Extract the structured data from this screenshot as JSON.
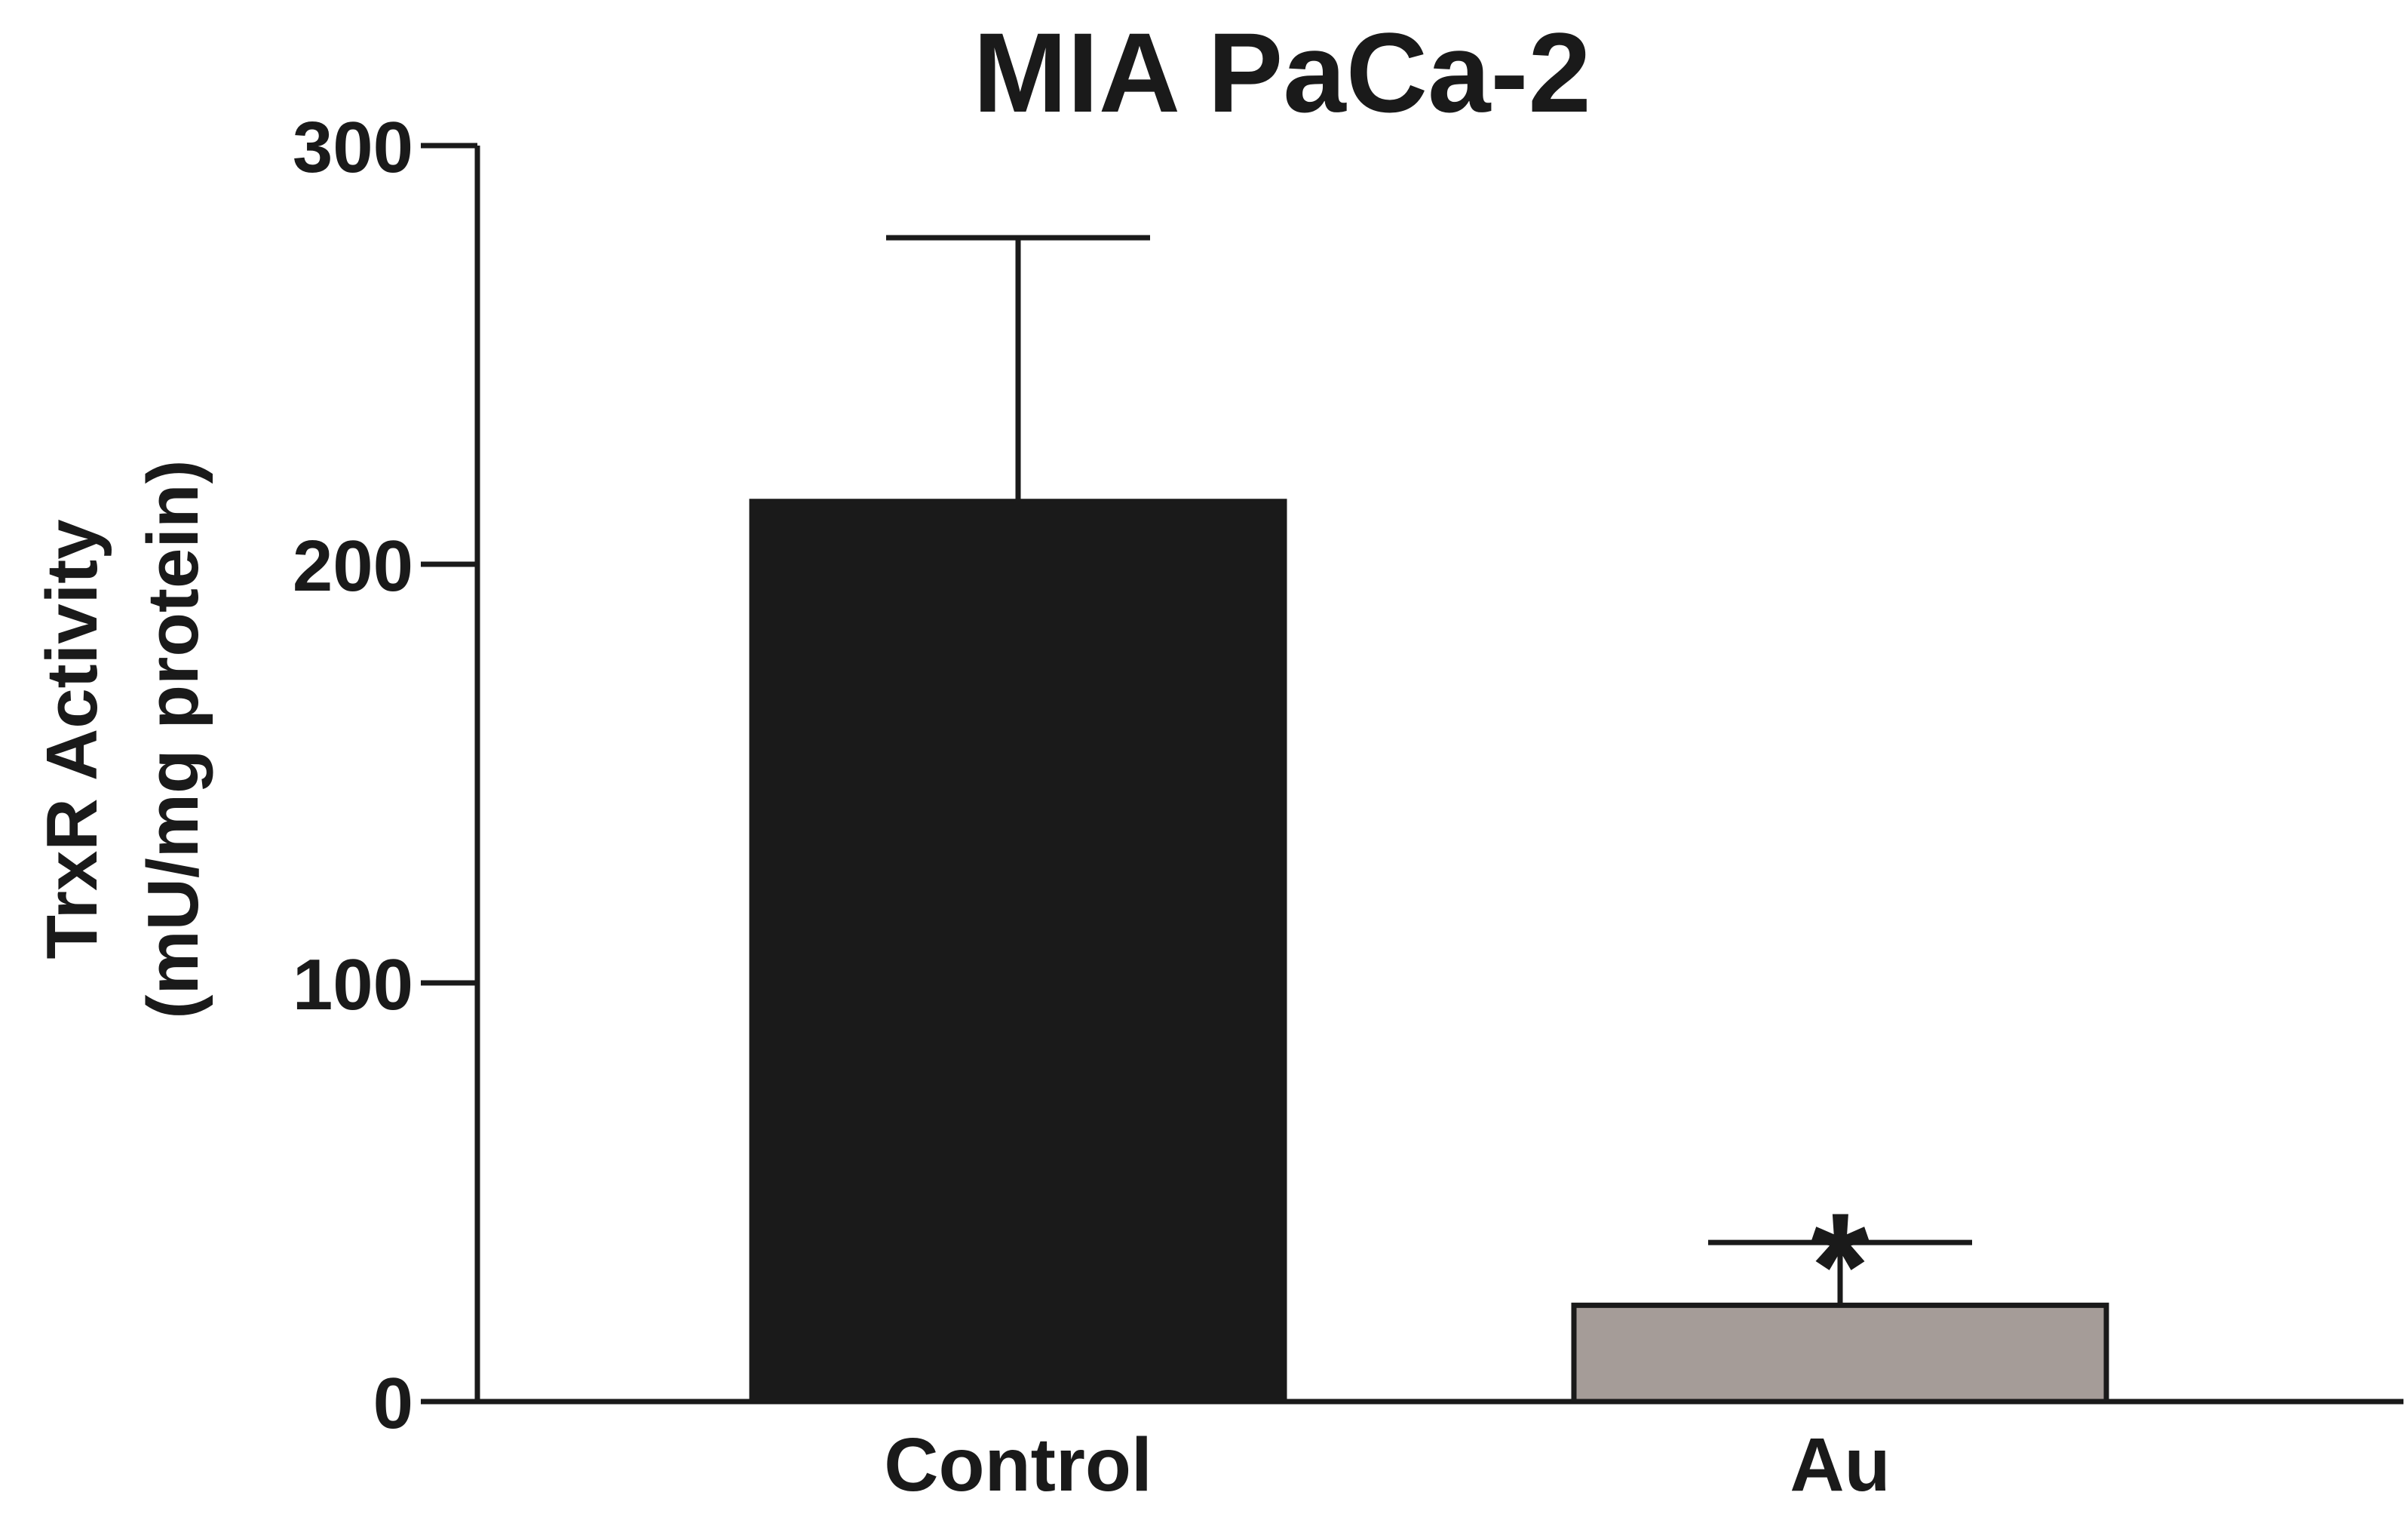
{
  "chart_data": {
    "type": "bar",
    "title": "MIA PaCa-2",
    "ylabel_line1": "TrxR Activity",
    "ylabel_line2": "(mU/mg protein)",
    "xlabel": "",
    "categories": [
      "Control",
      "Au"
    ],
    "values": [
      215,
      23
    ],
    "error_upper": [
      278,
      38
    ],
    "bar_colors": [
      "#1a1a1a",
      "#a59c98"
    ],
    "ylim": [
      0,
      300
    ],
    "yticks": [
      0,
      100,
      200,
      300
    ],
    "annotations": [
      {
        "category": "Au",
        "text": "*"
      }
    ],
    "grid": false,
    "legend": "none"
  }
}
